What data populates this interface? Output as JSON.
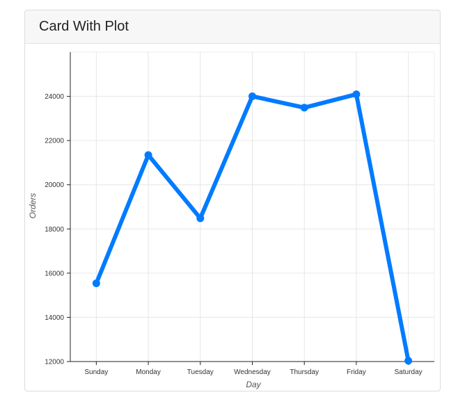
{
  "card": {
    "title": "Card With Plot"
  },
  "chart_data": {
    "type": "line",
    "categories": [
      "Sunday",
      "Monday",
      "Tuesday",
      "Wednesday",
      "Thursday",
      "Friday",
      "Saturday"
    ],
    "series": [
      {
        "values": [
          15539,
          21345,
          18483,
          24003,
          23489,
          24092,
          12034
        ],
        "color": "#007bff"
      }
    ],
    "xlabel": "Day",
    "ylabel": "Orders",
    "ylim": [
      12000,
      26000
    ],
    "yticks": [
      12000,
      14000,
      16000,
      18000,
      20000,
      22000,
      24000
    ],
    "ytick_labels": [
      "12000",
      "14000",
      "16000",
      "18000",
      "20000",
      "22000",
      "24000"
    ],
    "grid": true,
    "legend": "none"
  }
}
